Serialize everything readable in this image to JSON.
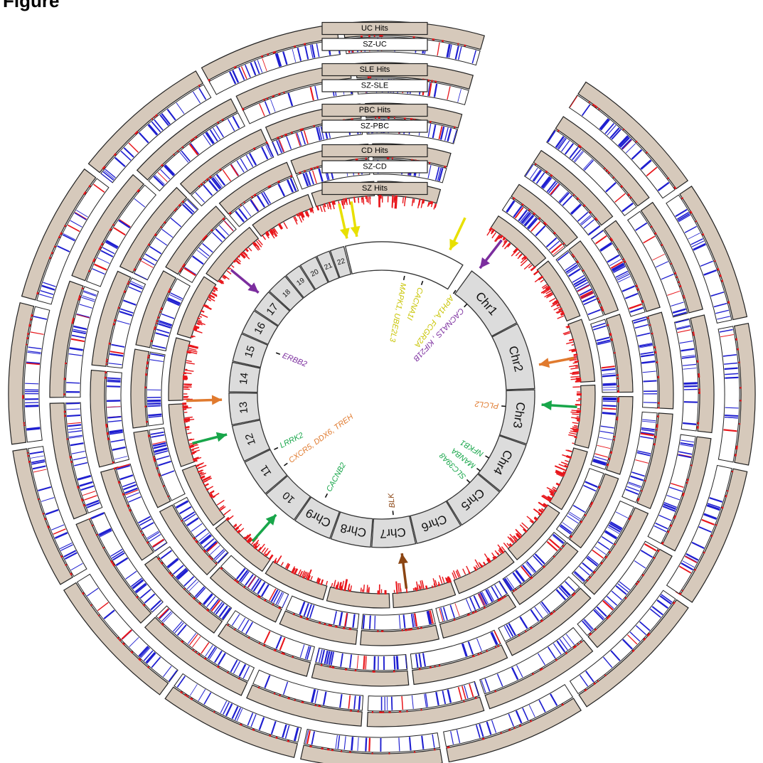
{
  "figure": {
    "title": "Figure"
  },
  "ring_labels": [
    {
      "hits": "UC Hits",
      "sz": "SZ-UC"
    },
    {
      "hits": "SLE Hits",
      "sz": "SZ-SLE"
    },
    {
      "hits": "PBC Hits",
      "sz": "SZ-PBC"
    },
    {
      "hits": "CD Hits",
      "sz": "SZ-CD"
    },
    {
      "hits": "SZ Hits",
      "sz": ""
    }
  ],
  "chromosomes": [
    {
      "label": "Chr1",
      "length": 249
    },
    {
      "label": "Chr2",
      "length": 243
    },
    {
      "label": "Chr3",
      "length": 198
    },
    {
      "label": "Chr4",
      "length": 191
    },
    {
      "label": "Chr5",
      "length": 181
    },
    {
      "label": "Chr6",
      "length": 171
    },
    {
      "label": "Chr7",
      "length": 159
    },
    {
      "label": "Chr8",
      "length": 146
    },
    {
      "label": "Chr9",
      "length": 141
    },
    {
      "label": "10",
      "length": 136
    },
    {
      "label": "11",
      "length": 135
    },
    {
      "label": "12",
      "length": 134
    },
    {
      "label": "13",
      "length": 115
    },
    {
      "label": "14",
      "length": 107
    },
    {
      "label": "15",
      "length": 103
    },
    {
      "label": "16",
      "length": 90
    },
    {
      "label": "17",
      "length": 81
    },
    {
      "label": "18",
      "length": 78
    },
    {
      "label": "19",
      "length": 59
    },
    {
      "label": "20",
      "length": 63
    },
    {
      "label": "21",
      "length": 48
    },
    {
      "label": "22",
      "length": 51
    }
  ],
  "gene_labels": [
    {
      "text": "CACNA1I",
      "color": "#c8c400"
    },
    {
      "text": "MAPK1, UBE2L3",
      "color": "#c8c400"
    },
    {
      "text": "APH1A, FCGR2A",
      "color": "#c8c400"
    },
    {
      "text": "CACNA1S , KIF21B",
      "color": "#7b2d9e"
    },
    {
      "text": "ERBB2",
      "color": "#7b2d9e"
    },
    {
      "text": "PLCL2",
      "color": "#e07a2e"
    },
    {
      "text": "NFKB1",
      "color": "#18a64a"
    },
    {
      "text": "MANBA",
      "color": "#18a64a"
    },
    {
      "text": "SLC39A8",
      "color": "#18a64a"
    },
    {
      "text": "LRRK2",
      "color": "#18a64a"
    },
    {
      "text": "CXCR5, DDX6, TREH",
      "color": "#e07a2e"
    },
    {
      "text": "CACNB2",
      "color": "#18a64a"
    },
    {
      "text": "BLK",
      "color": "#8b4513"
    }
  ],
  "arrows": [
    {
      "color": "#e8e000"
    },
    {
      "color": "#e8e000"
    },
    {
      "color": "#e8e000"
    },
    {
      "color": "#7b2d9e"
    },
    {
      "color": "#7b2d9e"
    },
    {
      "color": "#e07a2e"
    },
    {
      "color": "#18a64a"
    },
    {
      "color": "#18a64a"
    },
    {
      "color": "#e07a2e"
    },
    {
      "color": "#18a64a"
    },
    {
      "color": "#8b4513"
    }
  ],
  "colors": {
    "ideogram_fill": "#dcdcdc",
    "hits_band": "#d6c9bb",
    "hits_peak": "#e8161b",
    "sz_track_line": "#1f1fd0",
    "sz_track_red": "#e8161b"
  }
}
